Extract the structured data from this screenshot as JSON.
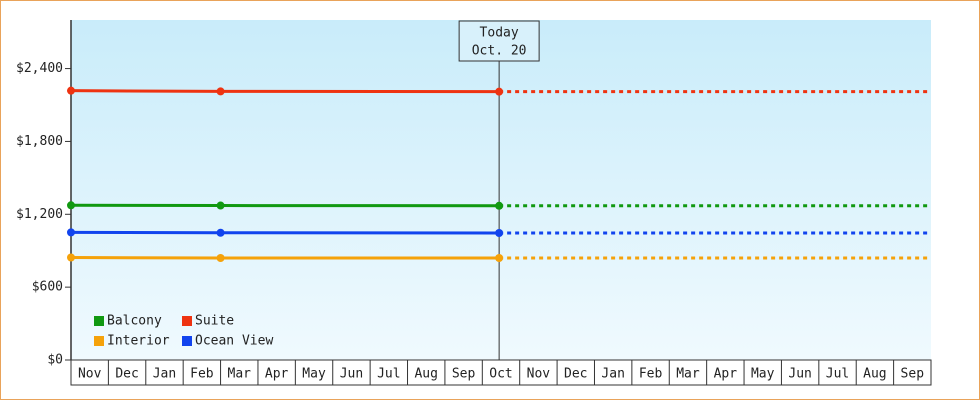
{
  "chart_data": {
    "type": "line",
    "categories": [
      "Nov",
      "Dec",
      "Jan",
      "Feb",
      "Mar",
      "Apr",
      "May",
      "Jun",
      "Jul",
      "Aug",
      "Sep",
      "Oct",
      "Nov",
      "Dec",
      "Jan",
      "Feb",
      "Mar",
      "Apr",
      "May",
      "Jun",
      "Jul",
      "Aug",
      "Sep"
    ],
    "x": [
      0,
      4,
      11.45
    ],
    "xlim": [
      0,
      23
    ],
    "ylim": [
      0,
      2800
    ],
    "yticks": [
      {
        "value": 0,
        "label": "$0"
      },
      {
        "value": 600,
        "label": "$600"
      },
      {
        "value": 1200,
        "label": "$1,200"
      },
      {
        "value": 1800,
        "label": "$1,800"
      },
      {
        "value": 2400,
        "label": "$2,400"
      }
    ],
    "series": [
      {
        "name": "Balcony",
        "color": "#119911",
        "values": [
          1274,
          1272,
          1270
        ]
      },
      {
        "name": "Suite",
        "color": "#ee3311",
        "values": [
          2218,
          2212,
          2210
        ]
      },
      {
        "name": "Interior",
        "color": "#f5a20a",
        "values": [
          844,
          840,
          840
        ]
      },
      {
        "name": "Ocean View",
        "color": "#1144ee",
        "values": [
          1051,
          1048,
          1046
        ]
      }
    ],
    "annotation": {
      "lines": [
        "Today",
        "Oct. 20"
      ],
      "x": 11.45
    },
    "forecast_dashed": true
  }
}
